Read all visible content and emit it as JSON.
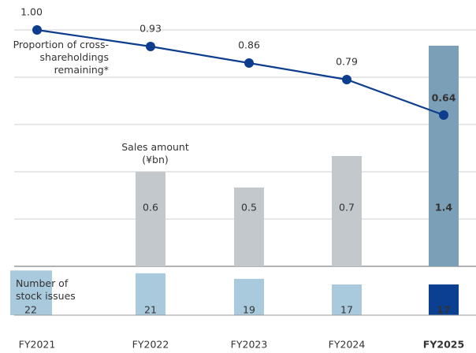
{
  "chart_data": [
    {
      "type": "bar",
      "categories": [
        "FY2021",
        "FY2022",
        "FY2023",
        "FY2024",
        "FY2025"
      ],
      "ylim": [
        0,
        1.5
      ],
      "yticks": [
        0,
        0.3,
        0.6,
        0.9,
        1.2,
        1.5
      ],
      "grid": true,
      "y2lim": [
        0,
        1
      ],
      "series": [
        {
          "name": "Sales amount (¥bn)",
          "type": "bar",
          "colors": [
            "#c3c8cd",
            "#c3c8cd",
            "#c3c8cd",
            "#c3c8cd",
            "#7b9fb7"
          ],
          "values": [
            null,
            0.6,
            0.5,
            0.7,
            1.4
          ]
        },
        {
          "name": "Proportion of cross-shareholdings remaining*",
          "type": "line",
          "axis": "y2",
          "color": "#0d3d8c",
          "values": [
            1,
            0.93,
            0.86,
            0.79,
            0.64
          ],
          "value_labels": [
            "1.00",
            "0.93",
            "0.86",
            "0.79",
            "0.64"
          ]
        }
      ]
    },
    {
      "type": "bar",
      "categories": [
        "FY2021",
        "FY2022",
        "FY2023",
        "FY2024",
        "FY2025"
      ],
      "ylim": [
        6,
        28
      ],
      "bold_last_category": true,
      "series": [
        {
          "name": "Number of stock issues",
          "colors": [
            "#a9c9dd",
            "#a9c9dd",
            "#a9c9dd",
            "#a9c9dd",
            "#0b3f91"
          ],
          "values": [
            22,
            21,
            19,
            17,
            17
          ]
        }
      ]
    }
  ]
}
